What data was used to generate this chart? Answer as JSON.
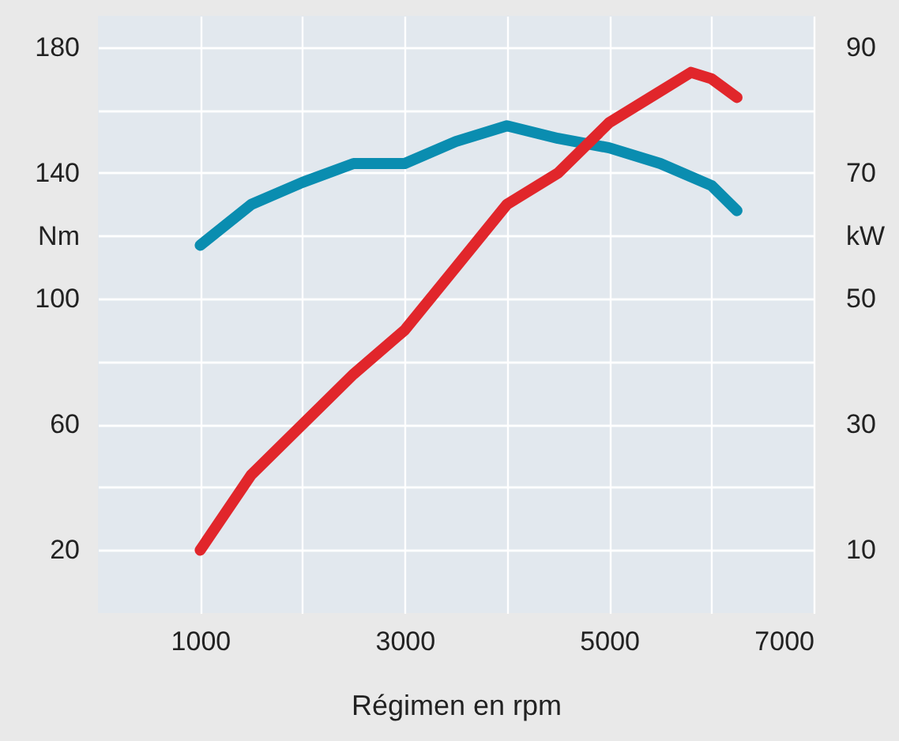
{
  "chart_data": {
    "type": "line",
    "xlabel": "Régimen en rpm",
    "ylabel": "Nm",
    "y2label": "kW",
    "x": [
      1000,
      1500,
      2000,
      2500,
      3000,
      3500,
      4000,
      4500,
      5000,
      5500,
      5800,
      6000,
      6250
    ],
    "series": [
      {
        "color": "#0a8db0",
        "values": [
          117,
          130,
          137,
          143,
          143,
          150,
          155,
          151,
          148,
          143,
          null,
          136,
          128
        ]
      },
      {
        "color": "#e1262b",
        "axis": "y2",
        "values": [
          10,
          22,
          30,
          38,
          45,
          55,
          65,
          70,
          78,
          83,
          86,
          85,
          82
        ]
      }
    ],
    "xlim": [
      0,
      7000
    ],
    "xticks": [
      1000,
      {
        "value": 2000,
        "label": null
      },
      3000,
      {
        "value": 4000,
        "label": null
      },
      5000,
      {
        "value": 6000,
        "label": null
      },
      7000
    ],
    "ylim": [
      0,
      190
    ],
    "yticks": [
      20,
      {
        "value": 40,
        "label": null
      },
      60,
      {
        "value": 80,
        "label": null
      },
      100,
      {
        "value": 120,
        "label": null
      },
      140,
      {
        "value": 160,
        "label": null
      },
      180
    ],
    "y2lim": [
      0,
      95
    ],
    "y2ticks": [
      10,
      {
        "value": 20,
        "label": null
      },
      30,
      {
        "value": 40,
        "label": null
      },
      50,
      {
        "value": 60,
        "label": null
      },
      70,
      {
        "value": 80,
        "label": null
      },
      90
    ],
    "grid": true
  }
}
